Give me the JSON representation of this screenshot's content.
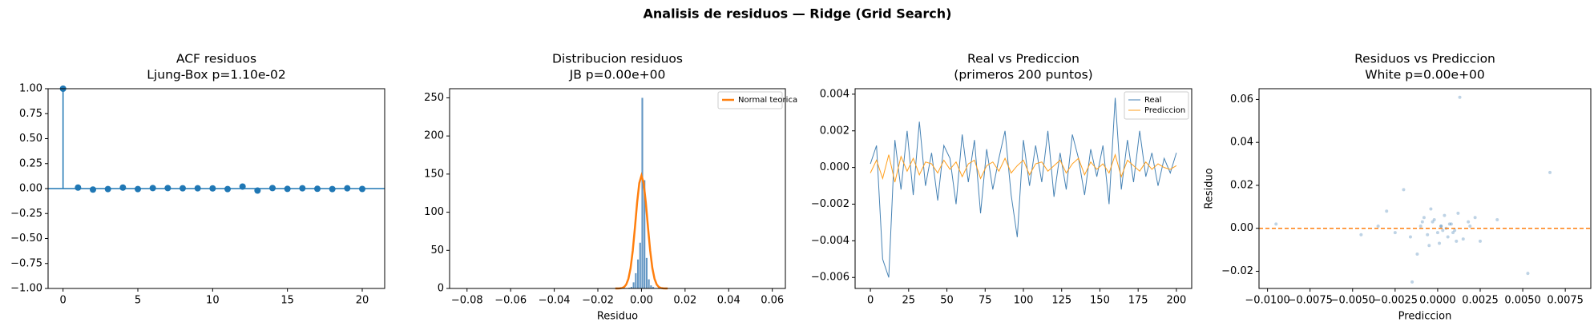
{
  "title": "Analisis de residuos — Ridge (Grid Search)",
  "chart_data": [
    {
      "type": "stem",
      "title": "ACF residuos",
      "subtitle": "Ljung-Box p=1.10e-02",
      "color": "#1f77b4",
      "baseline": 0,
      "x": [
        0,
        1,
        2,
        3,
        4,
        5,
        6,
        7,
        8,
        9,
        10,
        11,
        12,
        13,
        14,
        15,
        16,
        17,
        18,
        19,
        20
      ],
      "values": [
        1.0,
        0.01,
        -0.01,
        -0.005,
        0.01,
        -0.005,
        0.005,
        0.005,
        0.003,
        0.003,
        0.002,
        -0.005,
        0.02,
        -0.02,
        0.005,
        -0.003,
        0.003,
        -0.002,
        -0.005,
        0.003,
        -0.004
      ],
      "xlim": [
        -1,
        21.5
      ],
      "ylim": [
        -1,
        1
      ],
      "xticks": [
        0,
        5,
        10,
        15,
        20
      ],
      "yticks": [
        {
          "value": -1,
          "label": "−1.00"
        },
        {
          "value": -0.75,
          "label": "−0.75"
        },
        {
          "value": -0.5,
          "label": "−0.50"
        },
        {
          "value": -0.25,
          "label": "−0.25"
        },
        {
          "value": 0,
          "label": "0.00"
        },
        {
          "value": 0.25,
          "label": "0.25"
        },
        {
          "value": 0.5,
          "label": "0.50"
        },
        {
          "value": 0.75,
          "label": "0.75"
        },
        {
          "value": 1,
          "label": "1.00"
        }
      ]
    },
    {
      "type": "histogram",
      "title": "Distribucion residuos",
      "subtitle": "JB p=0.00e+00",
      "xlabel": "Residuo",
      "color": "#6497c4",
      "legend": "upper right",
      "bins": [
        -0.006,
        -0.005,
        -0.004,
        -0.003,
        -0.002,
        -0.001,
        0,
        0.001,
        0.002,
        0.003,
        0.004,
        0.005,
        0.006
      ],
      "values": [
        1,
        2,
        8,
        20,
        38,
        60,
        250,
        142,
        40,
        12,
        4,
        2
      ],
      "curve": {
        "name": "Normal teorica",
        "color": "#ff7f0e",
        "x": [
          -0.012,
          -0.011,
          -0.01,
          -0.009,
          -0.008,
          -0.007,
          -0.006,
          -0.005,
          -0.004,
          -0.003,
          -0.002,
          -0.001,
          0,
          0.001,
          0.002,
          0.003,
          0.004,
          0.005,
          0.006,
          0.007,
          0.008,
          0.009,
          0.01,
          0.011,
          0.012
        ],
        "values": [
          0,
          0.04,
          0.15,
          0.57,
          1.8,
          5.1,
          12.5,
          26.6,
          49.4,
          79.8,
          112.5,
          138.2,
          148,
          138.2,
          112.5,
          79.8,
          49.4,
          26.6,
          12.5,
          5.1,
          1.8,
          0.57,
          0.15,
          0.04,
          0
        ]
      },
      "xlim": [
        -0.088,
        0.066
      ],
      "ylim": [
        0,
        262
      ],
      "xticks": [
        {
          "value": -0.08,
          "label": "−0.08"
        },
        {
          "value": -0.06,
          "label": "−0.06"
        },
        {
          "value": -0.04,
          "label": "−0.04"
        },
        {
          "value": -0.02,
          "label": "−0.02"
        },
        {
          "value": 0,
          "label": "0.00"
        },
        {
          "value": 0.02,
          "label": "0.02"
        },
        {
          "value": 0.04,
          "label": "0.04"
        },
        {
          "value": 0.06,
          "label": "0.06"
        }
      ],
      "yticks": [
        0,
        50,
        100,
        150,
        200,
        250
      ]
    },
    {
      "type": "line",
      "title": "Real vs Prediccion",
      "subtitle": "(primeros 200 puntos)",
      "legend": "upper right",
      "x": [
        0,
        4,
        8,
        12,
        16,
        20,
        24,
        28,
        32,
        36,
        40,
        44,
        48,
        52,
        56,
        60,
        64,
        68,
        72,
        76,
        80,
        84,
        88,
        92,
        96,
        100,
        104,
        108,
        112,
        116,
        120,
        124,
        128,
        132,
        136,
        140,
        144,
        148,
        152,
        156,
        160,
        164,
        168,
        172,
        176,
        180,
        184,
        188,
        192,
        196,
        200
      ],
      "series": [
        {
          "name": "Real",
          "color": "#4682b4",
          "values": [
            0.0002,
            0.0012,
            -0.005,
            -0.006,
            0.0015,
            -0.0012,
            0.002,
            -0.0015,
            0.0025,
            -0.001,
            0.0008,
            -0.0018,
            0.0012,
            0.0005,
            -0.002,
            0.0018,
            -0.0008,
            0.0015,
            -0.0025,
            0.001,
            -0.0012,
            0.0005,
            0.002,
            -0.0015,
            -0.0038,
            0.0015,
            -0.001,
            0.0012,
            -0.0008,
            0.002,
            -0.0016,
            0.0008,
            -0.0012,
            0.0018,
            0.0005,
            -0.0015,
            0.001,
            -0.0005,
            0.0012,
            -0.002,
            0.0038,
            -0.0012,
            0.0015,
            -0.0008,
            0.002,
            -0.0005,
            0.0008,
            -0.001,
            0.0005,
            -0.0003,
            0.0008
          ]
        },
        {
          "name": "Prediccion",
          "color": "#ff9f1c",
          "values": [
            -0.0003,
            0.0004,
            -0.0006,
            0.0007,
            -0.0008,
            0.0006,
            -0.0002,
            0.0005,
            -0.0004,
            0.0003,
            0.0002,
            -0.0003,
            0.0004,
            -0.0001,
            0.0003,
            -0.0005,
            0.0002,
            0.0004,
            -0.0006,
            0.0001,
            0.0003,
            -0.0002,
            0.0005,
            -0.0003,
            0.0001,
            0.0004,
            -0.0004,
            0.0002,
            0.0003,
            -0.0002,
            0.0001,
            0.0004,
            -0.0003,
            0.0002,
            0.0005,
            -0.0004,
            0.0003,
            -0.0001,
            0.0002,
            -0.0003,
            0.0007,
            -0.0005,
            0.0004,
            0.0001,
            -0.0002,
            0.0003,
            -0.0001,
            0.0002,
            0,
            -0.0001,
            0.0001
          ]
        }
      ],
      "xlim": [
        -10,
        210
      ],
      "ylim": [
        -0.0066,
        0.0043
      ],
      "xticks": [
        0,
        25,
        50,
        75,
        100,
        125,
        150,
        175,
        200
      ],
      "yticks": [
        {
          "value": -0.006,
          "label": "−0.006"
        },
        {
          "value": -0.004,
          "label": "−0.004"
        },
        {
          "value": -0.002,
          "label": "−0.002"
        },
        {
          "value": 0,
          "label": "0.000"
        },
        {
          "value": 0.002,
          "label": "0.002"
        },
        {
          "value": 0.004,
          "label": "0.004"
        }
      ]
    },
    {
      "type": "scatter",
      "title": "Residuos vs Prediccion",
      "subtitle": "White p=0.00e+00",
      "xlabel": "Prediccion",
      "ylabel": "Residuo",
      "color": "#4682b4",
      "hline": 0,
      "hline_color": "#ff7f0e",
      "x": [
        0.0013,
        0.0066,
        0.0053,
        -0.0015,
        -0.0095,
        -0.0045,
        -0.0035,
        -0.003,
        0.0025,
        0.0035,
        -0.002,
        -0.0012,
        -0.0008,
        -0.0005,
        -0.0003,
        0,
        0.0002,
        0.0004,
        0.0006,
        0.0008,
        0.001,
        0.0012,
        0.0015,
        0.0018,
        -0.001,
        -0.0006,
        -0.0002,
        0.0003,
        0.0007,
        0.0011,
        -0.0016,
        0.0019,
        -0.0004,
        0.0001,
        0.0005,
        -0.0009,
        0.0009,
        -0.0025,
        0.0022,
        0.0002
      ],
      "values": [
        0.061,
        0.026,
        -0.021,
        -0.025,
        0.002,
        -0.003,
        0.001,
        0.008,
        -0.006,
        0.004,
        0.018,
        -0.012,
        0.005,
        -0.008,
        0.003,
        -0.002,
        0.001,
        0.006,
        -0.004,
        0.002,
        -0.001,
        0.007,
        -0.005,
        0.003,
        0.001,
        -0.003,
        0.004,
        -0.001,
        0.002,
        -0.006,
        -0.004,
        0.001,
        0.009,
        -0.007,
        0,
        0.003,
        -0.002,
        -0.002,
        0.005,
        0.001
      ],
      "xlim": [
        -0.0105,
        0.009
      ],
      "ylim": [
        -0.028,
        0.065
      ],
      "xticks": [
        {
          "value": -0.01,
          "label": "−0.0100"
        },
        {
          "value": -0.0075,
          "label": "−0.0075"
        },
        {
          "value": -0.005,
          "label": "−0.0050"
        },
        {
          "value": -0.0025,
          "label": "−0.0025"
        },
        {
          "value": 0,
          "label": "0.0000"
        },
        {
          "value": 0.0025,
          "label": "0.0025"
        },
        {
          "value": 0.005,
          "label": "0.0050"
        },
        {
          "value": 0.0075,
          "label": "0.0075"
        }
      ],
      "yticks": [
        {
          "value": -0.02,
          "label": "−0.02"
        },
        {
          "value": 0,
          "label": "0.00"
        },
        {
          "value": 0.02,
          "label": "0.02"
        },
        {
          "value": 0.04,
          "label": "0.04"
        },
        {
          "value": 0.06,
          "label": "0.06"
        }
      ]
    }
  ]
}
